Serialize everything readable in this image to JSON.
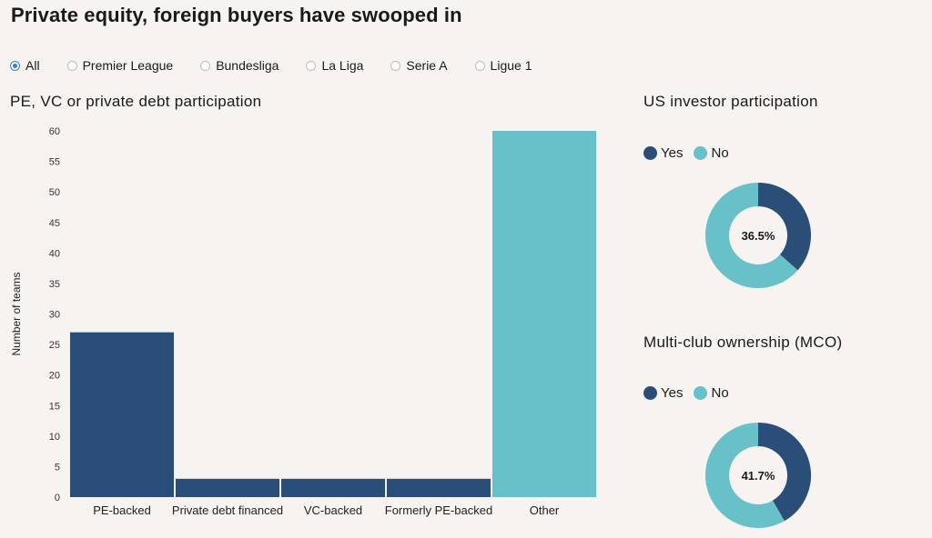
{
  "title": "Private equity, foreign buyers have swooped in",
  "filters": {
    "selected": "All",
    "options": [
      "All",
      "Premier League",
      "Bundesliga",
      "La Liga",
      "Serie A",
      "Ligue 1"
    ]
  },
  "colors": {
    "dark": "#2b4e79",
    "light": "#68c0c8",
    "accent": "#2f7fd6"
  },
  "legend": {
    "yes": "Yes",
    "no": "No"
  },
  "chart_data": [
    {
      "type": "bar",
      "title": "PE, VC or private debt participation",
      "ylabel": "Number of teams",
      "xlabel": "",
      "ylim": [
        0,
        60
      ],
      "yticks": [
        0,
        5,
        10,
        15,
        20,
        25,
        30,
        35,
        40,
        45,
        50,
        55,
        60
      ],
      "categories": [
        "PE-backed",
        "Private debt financed",
        "VC-backed",
        "Formerly PE-backed",
        "Other"
      ],
      "values": [
        27,
        3,
        3,
        3,
        60
      ],
      "bar_colors": [
        "#2b4e79",
        "#2b4e79",
        "#2b4e79",
        "#2b4e79",
        "#68c0c8"
      ]
    },
    {
      "type": "pie",
      "title": "US investor participation",
      "labels": [
        "Yes",
        "No"
      ],
      "values": [
        36.5,
        63.5
      ],
      "center_label": "36.5%"
    },
    {
      "type": "pie",
      "title": "Multi-club ownership (MCO)",
      "labels": [
        "Yes",
        "No"
      ],
      "values": [
        41.7,
        58.3
      ],
      "center_label": "41.7%"
    }
  ]
}
